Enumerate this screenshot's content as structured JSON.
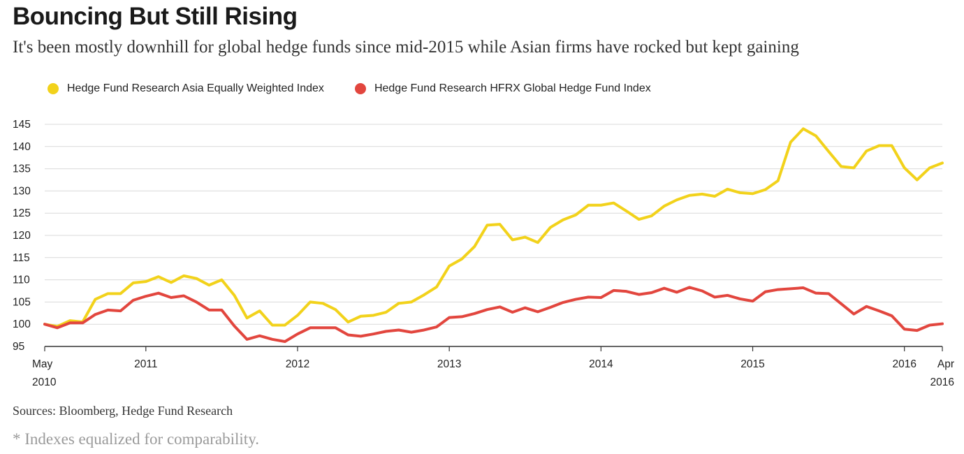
{
  "header": {
    "title": "Bouncing But Still Rising",
    "subtitle": "It's been mostly downhill for global hedge funds since mid-2015 while Asian firms have rocked but kept gaining"
  },
  "footer": {
    "source": "Sources: Bloomberg, Hedge Fund Research",
    "note": "* Indexes equalized for comparability."
  },
  "chart_data": {
    "type": "line",
    "title": "Bouncing But Still Rising",
    "subtitle": "It's been mostly downhill for global hedge funds since mid-2015 while Asian firms have rocked but kept gaining",
    "xlabel": "",
    "ylabel": "",
    "ylim": [
      95,
      145
    ],
    "yticks": [
      95,
      100,
      105,
      110,
      115,
      120,
      125,
      130,
      135,
      140,
      145
    ],
    "xrange": [
      "2010-05",
      "2016-04"
    ],
    "xticks": [
      {
        "label": "May",
        "label2": "2010",
        "date": "2010-05"
      },
      {
        "label": "2011",
        "label2": "",
        "date": "2011-01"
      },
      {
        "label": "2012",
        "label2": "",
        "date": "2012-01"
      },
      {
        "label": "2013",
        "label2": "",
        "date": "2013-01"
      },
      {
        "label": "2014",
        "label2": "",
        "date": "2014-01"
      },
      {
        "label": "2015",
        "label2": "",
        "date": "2015-01"
      },
      {
        "label": "2016",
        "label2": "",
        "date": "2016-01"
      },
      {
        "label": "Apr",
        "label2": "2016",
        "date": "2016-04"
      }
    ],
    "grid": true,
    "legend_position": "top-left",
    "x": [
      "2010-05",
      "2010-06",
      "2010-07",
      "2010-08",
      "2010-09",
      "2010-10",
      "2010-11",
      "2010-12",
      "2011-01",
      "2011-02",
      "2011-03",
      "2011-04",
      "2011-05",
      "2011-06",
      "2011-07",
      "2011-08",
      "2011-09",
      "2011-10",
      "2011-11",
      "2011-12",
      "2012-01",
      "2012-02",
      "2012-03",
      "2012-04",
      "2012-05",
      "2012-06",
      "2012-07",
      "2012-08",
      "2012-09",
      "2012-10",
      "2012-11",
      "2012-12",
      "2013-01",
      "2013-02",
      "2013-03",
      "2013-04",
      "2013-05",
      "2013-06",
      "2013-07",
      "2013-08",
      "2013-09",
      "2013-10",
      "2013-11",
      "2013-12",
      "2014-01",
      "2014-02",
      "2014-03",
      "2014-04",
      "2014-05",
      "2014-06",
      "2014-07",
      "2014-08",
      "2014-09",
      "2014-10",
      "2014-11",
      "2014-12",
      "2015-01",
      "2015-02",
      "2015-03",
      "2015-04",
      "2015-05",
      "2015-06",
      "2015-07",
      "2015-08",
      "2015-09",
      "2015-10",
      "2015-11",
      "2015-12",
      "2016-01",
      "2016-02",
      "2016-03",
      "2016-04"
    ],
    "series": [
      {
        "name": "Hedge Fund Research Asia Equally Weighted Index",
        "color": "#f2d21b",
        "values": [
          100,
          99.5,
          100.8,
          100.5,
          105.6,
          106.9,
          106.9,
          109.3,
          109.6,
          110.7,
          109.4,
          110.9,
          110.3,
          108.8,
          110,
          106.5,
          101.4,
          103,
          99.8,
          99.8,
          102,
          105,
          104.7,
          103.3,
          100.5,
          101.8,
          102,
          102.7,
          104.7,
          105,
          106.6,
          108.4,
          113.1,
          114.7,
          117.5,
          122.3,
          122.5,
          119,
          119.6,
          118.4,
          121.8,
          123.5,
          124.6,
          126.8,
          126.8,
          127.3,
          125.5,
          123.6,
          124.4,
          126.6,
          128,
          129,
          129.3,
          128.8,
          130.4,
          129.6,
          129.4,
          130.3,
          132.3,
          141,
          144,
          142.4,
          138.9,
          135.5,
          135.2,
          139,
          140.2,
          140.2,
          135.2,
          132.5,
          135.2,
          136.3
        ]
      },
      {
        "name": "Hedge Fund Research HFRX Global Hedge Fund Index",
        "color": "#e2463e",
        "values": [
          100,
          99.2,
          100.3,
          100.3,
          102.2,
          103.2,
          103,
          105.4,
          106.3,
          107,
          106,
          106.4,
          105,
          103.2,
          103.2,
          99.6,
          96.6,
          97.4,
          96.6,
          96.1,
          97.8,
          99.2,
          99.2,
          99.2,
          97.6,
          97.3,
          97.8,
          98.4,
          98.7,
          98.2,
          98.7,
          99.4,
          101.5,
          101.7,
          102.4,
          103.3,
          103.9,
          102.7,
          103.7,
          102.8,
          103.8,
          104.9,
          105.6,
          106.1,
          106,
          107.6,
          107.4,
          106.7,
          107.1,
          108.1,
          107.2,
          108.3,
          107.5,
          106.1,
          106.5,
          105.7,
          105.2,
          107.3,
          107.8,
          108,
          108.2,
          107,
          106.9,
          104.6,
          102.3,
          104,
          103,
          101.9,
          98.9,
          98.6,
          99.8,
          100.1
        ]
      }
    ]
  }
}
